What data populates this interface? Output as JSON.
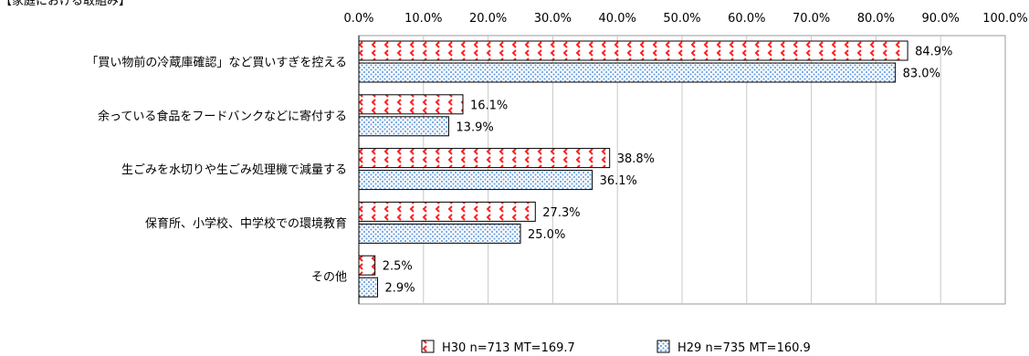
{
  "header": {
    "title": "【家庭における取組み】"
  },
  "chart_data": {
    "type": "bar",
    "orientation": "horizontal",
    "title": "【家庭における取組み】",
    "categories": [
      "「買い物前の冷蔵庫確認」など買いすぎを控える",
      "余っている食品をフードバンクなどに寄付する",
      "生ごみを水切りや生ごみ処理機で減量する",
      "保育所、小学校、中学校での環境教育",
      "その他"
    ],
    "series": [
      {
        "name": "H30 n=713 MT=169.7",
        "values": [
          84.9,
          16.1,
          38.8,
          27.3,
          2.5
        ],
        "labels": [
          "84.9%",
          "16.1%",
          "38.8%",
          "27.3%",
          "2.5%"
        ],
        "color": "#ff3333",
        "pattern": "red-chevrons"
      },
      {
        "name": "H29 n=735 MT=160.9",
        "values": [
          83.0,
          13.9,
          36.1,
          25.0,
          2.9
        ],
        "labels": [
          "83.0%",
          "13.9%",
          "36.1%",
          "25.0%",
          "2.9%"
        ],
        "color": "#6fa3e0",
        "pattern": "blue-dots"
      }
    ],
    "xlim": [
      0,
      100
    ],
    "xticks": [
      "0.0%",
      "10.0%",
      "20.0%",
      "30.0%",
      "40.0%",
      "50.0%",
      "60.0%",
      "70.0%",
      "80.0%",
      "90.0%",
      "100.0%"
    ],
    "xtick_position": "top",
    "grid": true,
    "legend_position": "bottom"
  }
}
